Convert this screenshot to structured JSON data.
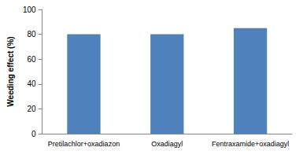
{
  "chart_data": {
    "type": "bar",
    "y_label": "Weeding effect (%)",
    "categories": [
      "Pretilachlor+oxadiazon",
      "Oxadiagyl",
      "Fentraxamide+oxadiagyl"
    ],
    "values": [
      80,
      80,
      85
    ],
    "color": "#4f81bd",
    "ylim": [
      0,
      100
    ],
    "yticks": [
      0,
      20,
      40,
      60,
      80,
      100
    ],
    "grid": false
  }
}
